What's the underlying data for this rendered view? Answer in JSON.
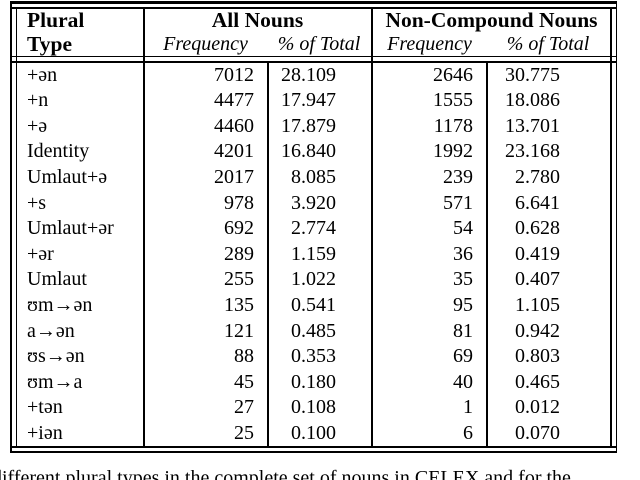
{
  "document": {
    "caption_fragment": "different plural types in the complete set of nouns in CELEX and for the"
  },
  "table": {
    "header": {
      "col_type_line1": "Plural",
      "col_type_line2": "Type",
      "group_all": "All Nouns",
      "group_noncompound": "Non-Compound Nouns",
      "sub_frequency": "Frequency",
      "sub_percent": "% of Total"
    },
    "rows": [
      {
        "type": "+ən",
        "freq_all": "7012",
        "pct_all": "28.109",
        "freq_nc": "2646",
        "pct_nc": "30.775"
      },
      {
        "type": "+n",
        "freq_all": "4477",
        "pct_all": "17.947",
        "freq_nc": "1555",
        "pct_nc": "18.086"
      },
      {
        "type": "+ə",
        "freq_all": "4460",
        "pct_all": "17.879",
        "freq_nc": "1178",
        "pct_nc": "13.701"
      },
      {
        "type": "Identity",
        "freq_all": "4201",
        "pct_all": "16.840",
        "freq_nc": "1992",
        "pct_nc": "23.168"
      },
      {
        "type": "Umlaut+ə",
        "freq_all": "2017",
        "pct_all": "8.085",
        "freq_nc": "239",
        "pct_nc": "2.780"
      },
      {
        "type": "+s",
        "freq_all": "978",
        "pct_all": "3.920",
        "freq_nc": "571",
        "pct_nc": "6.641"
      },
      {
        "type": "Umlaut+ər",
        "freq_all": "692",
        "pct_all": "2.774",
        "freq_nc": "54",
        "pct_nc": "0.628"
      },
      {
        "type": "+ər",
        "freq_all": "289",
        "pct_all": "1.159",
        "freq_nc": "36",
        "pct_nc": "0.419"
      },
      {
        "type": "Umlaut",
        "freq_all": "255",
        "pct_all": "1.022",
        "freq_nc": "35",
        "pct_nc": "0.407"
      },
      {
        "type": "ʊm→ən",
        "freq_all": "135",
        "pct_all": "0.541",
        "freq_nc": "95",
        "pct_nc": "1.105"
      },
      {
        "type": "a→ən",
        "freq_all": "121",
        "pct_all": "0.485",
        "freq_nc": "81",
        "pct_nc": "0.942"
      },
      {
        "type": "ʊs→ən",
        "freq_all": "88",
        "pct_all": "0.353",
        "freq_nc": "69",
        "pct_nc": "0.803"
      },
      {
        "type": "ʊm→a",
        "freq_all": "45",
        "pct_all": "0.180",
        "freq_nc": "40",
        "pct_nc": "0.465"
      },
      {
        "type": "+tən",
        "freq_all": "27",
        "pct_all": "0.108",
        "freq_nc": "1",
        "pct_nc": "0.012"
      },
      {
        "type": "+iən",
        "freq_all": "25",
        "pct_all": "0.100",
        "freq_nc": "6",
        "pct_nc": "0.070"
      }
    ]
  }
}
